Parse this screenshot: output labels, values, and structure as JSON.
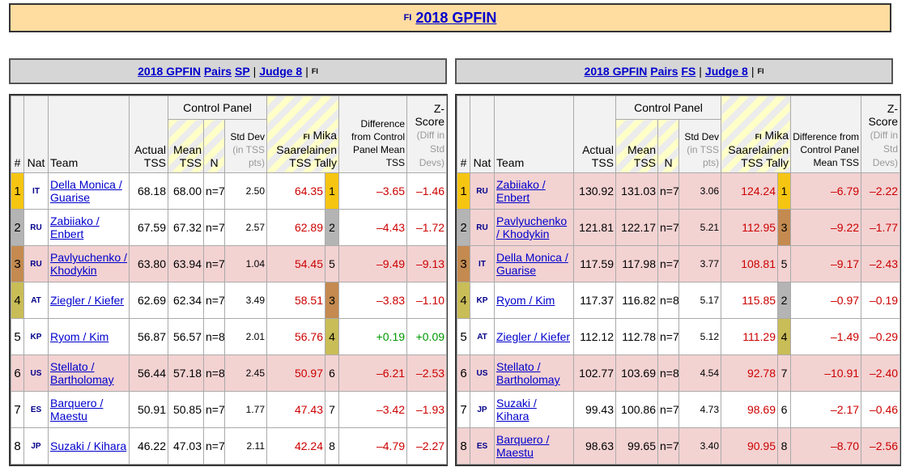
{
  "banner": {
    "flag": "FI",
    "title": "2018 GPFIN"
  },
  "headers": {
    "left": {
      "event": "2018 GPFIN",
      "category": "Pairs",
      "segment": "SP",
      "sep": "|",
      "judge": "Judge 8",
      "flag": "FI"
    },
    "right": {
      "event": "2018 GPFIN",
      "category": "Pairs",
      "segment": "FS",
      "sep": "|",
      "judge": "Judge 8",
      "flag": "FI"
    }
  },
  "columns": {
    "rank": "#",
    "nat": "Nat",
    "team": "Team",
    "actual": "Actual TSS",
    "control_panel": "Control Panel",
    "mean": "Mean TSS",
    "n": "N",
    "std": "Std Dev",
    "std_sub": "(in TSS pts)",
    "judge_flag": "FI",
    "judge": "Mika Saarelainen TSS Tally",
    "diff": "Difference from Control Panel Mean TSS",
    "z": "Z-Score",
    "z_sub": "(Diff in Std Devs)"
  },
  "colors": {
    "gold": "#f6c512",
    "silver": "#b4b4b4",
    "bronze": "#c48a50",
    "olive": "#c9bd57",
    "pink_row": "#f3d2d2"
  },
  "sp_rows": [
    {
      "rank": "1",
      "nat": "IT",
      "team": "Della Monica / Guarise",
      "actual": "68.18",
      "mean": "68.00",
      "n": "n=7",
      "std": "2.50",
      "judge": "64.35",
      "jrank": "1",
      "diff": "–3.65",
      "z": "–1.46",
      "row": "white",
      "rank_color": "gold",
      "jrank_color": "gold",
      "diff_color": "red"
    },
    {
      "rank": "2",
      "nat": "RU",
      "team": "Zabiiako / Enbert",
      "actual": "67.59",
      "mean": "67.32",
      "n": "n=7",
      "std": "2.57",
      "judge": "62.89",
      "jrank": "2",
      "diff": "–4.43",
      "z": "–1.72",
      "row": "white",
      "rank_color": "silver",
      "jrank_color": "silver",
      "diff_color": "red"
    },
    {
      "rank": "3",
      "nat": "RU",
      "team": "Pavlyuchenko / Khodykin",
      "actual": "63.80",
      "mean": "63.94",
      "n": "n=7",
      "std": "1.04",
      "judge": "54.45",
      "jrank": "5",
      "diff": "–9.49",
      "z": "–9.13",
      "row": "pink",
      "rank_color": "bronze",
      "jrank_color": "",
      "diff_color": "red"
    },
    {
      "rank": "4",
      "nat": "AT",
      "team": "Ziegler / Kiefer",
      "actual": "62.69",
      "mean": "62.34",
      "n": "n=7",
      "std": "3.49",
      "judge": "58.51",
      "jrank": "3",
      "diff": "–3.83",
      "z": "–1.10",
      "row": "white",
      "rank_color": "olive",
      "jrank_color": "bronze",
      "diff_color": "red"
    },
    {
      "rank": "5",
      "nat": "KP",
      "team": "Ryom / Kim",
      "actual": "56.87",
      "mean": "56.57",
      "n": "n=8",
      "std": "2.01",
      "judge": "56.76",
      "jrank": "4",
      "diff": "+0.19",
      "z": "+0.09",
      "row": "white",
      "rank_color": "",
      "jrank_color": "olive",
      "diff_color": "green"
    },
    {
      "rank": "6",
      "nat": "US",
      "team": "Stellato / Bartholomay",
      "actual": "56.44",
      "mean": "57.18",
      "n": "n=8",
      "std": "2.45",
      "judge": "50.97",
      "jrank": "6",
      "diff": "–6.21",
      "z": "–2.53",
      "row": "pink",
      "rank_color": "",
      "jrank_color": "",
      "diff_color": "red"
    },
    {
      "rank": "7",
      "nat": "ES",
      "team": "Barquero / Maestu",
      "actual": "50.91",
      "mean": "50.85",
      "n": "n=7",
      "std": "1.77",
      "judge": "47.43",
      "jrank": "7",
      "diff": "–3.42",
      "z": "–1.93",
      "row": "white",
      "rank_color": "",
      "jrank_color": "",
      "diff_color": "red"
    },
    {
      "rank": "8",
      "nat": "JP",
      "team": "Suzaki / Kihara",
      "actual": "46.22",
      "mean": "47.03",
      "n": "n=7",
      "std": "2.11",
      "judge": "42.24",
      "jrank": "8",
      "diff": "–4.79",
      "z": "–2.27",
      "row": "white",
      "rank_color": "",
      "jrank_color": "",
      "diff_color": "red"
    }
  ],
  "fs_rows": [
    {
      "rank": "1",
      "nat": "RU",
      "team": "Zabiiako / Enbert",
      "actual": "130.92",
      "mean": "131.03",
      "n": "n=7",
      "std": "3.06",
      "judge": "124.24",
      "jrank": "1",
      "diff": "–6.79",
      "z": "–2.22",
      "row": "pink",
      "rank_color": "gold",
      "jrank_color": "gold",
      "diff_color": "red"
    },
    {
      "rank": "2",
      "nat": "RU",
      "team": "Pavlyuchenko / Khodykin",
      "actual": "121.81",
      "mean": "122.17",
      "n": "n=7",
      "std": "5.21",
      "judge": "112.95",
      "jrank": "3",
      "diff": "–9.22",
      "z": "–1.77",
      "row": "pink",
      "rank_color": "silver",
      "jrank_color": "bronze",
      "diff_color": "red"
    },
    {
      "rank": "3",
      "nat": "IT",
      "team": "Della Monica / Guarise",
      "actual": "117.59",
      "mean": "117.98",
      "n": "n=7",
      "std": "3.77",
      "judge": "108.81",
      "jrank": "5",
      "diff": "–9.17",
      "z": "–2.43",
      "row": "pink",
      "rank_color": "bronze",
      "jrank_color": "",
      "diff_color": "red"
    },
    {
      "rank": "4",
      "nat": "KP",
      "team": "Ryom / Kim",
      "actual": "117.37",
      "mean": "116.82",
      "n": "n=8",
      "std": "5.17",
      "judge": "115.85",
      "jrank": "2",
      "diff": "–0.97",
      "z": "–0.19",
      "row": "white",
      "rank_color": "olive",
      "jrank_color": "silver",
      "diff_color": "red"
    },
    {
      "rank": "5",
      "nat": "AT",
      "team": "Ziegler / Kiefer",
      "actual": "112.12",
      "mean": "112.78",
      "n": "n=7",
      "std": "5.12",
      "judge": "111.29",
      "jrank": "4",
      "diff": "–1.49",
      "z": "–0.29",
      "row": "white",
      "rank_color": "",
      "jrank_color": "olive",
      "diff_color": "red"
    },
    {
      "rank": "6",
      "nat": "US",
      "team": "Stellato / Bartholomay",
      "actual": "102.77",
      "mean": "103.69",
      "n": "n=8",
      "std": "4.54",
      "judge": "92.78",
      "jrank": "7",
      "diff": "–10.91",
      "z": "–2.40",
      "row": "pink",
      "rank_color": "",
      "jrank_color": "",
      "diff_color": "red"
    },
    {
      "rank": "7",
      "nat": "JP",
      "team": "Suzaki / Kihara",
      "actual": "99.43",
      "mean": "100.86",
      "n": "n=7",
      "std": "4.73",
      "judge": "98.69",
      "jrank": "6",
      "diff": "–2.17",
      "z": "–0.46",
      "row": "white",
      "rank_color": "",
      "jrank_color": "",
      "diff_color": "red"
    },
    {
      "rank": "8",
      "nat": "ES",
      "team": "Barquero / Maestu",
      "actual": "98.63",
      "mean": "99.65",
      "n": "n=7",
      "std": "3.40",
      "judge": "90.95",
      "jrank": "8",
      "diff": "–8.70",
      "z": "–2.56",
      "row": "pink",
      "rank_color": "",
      "jrank_color": "",
      "diff_color": "red"
    }
  ]
}
